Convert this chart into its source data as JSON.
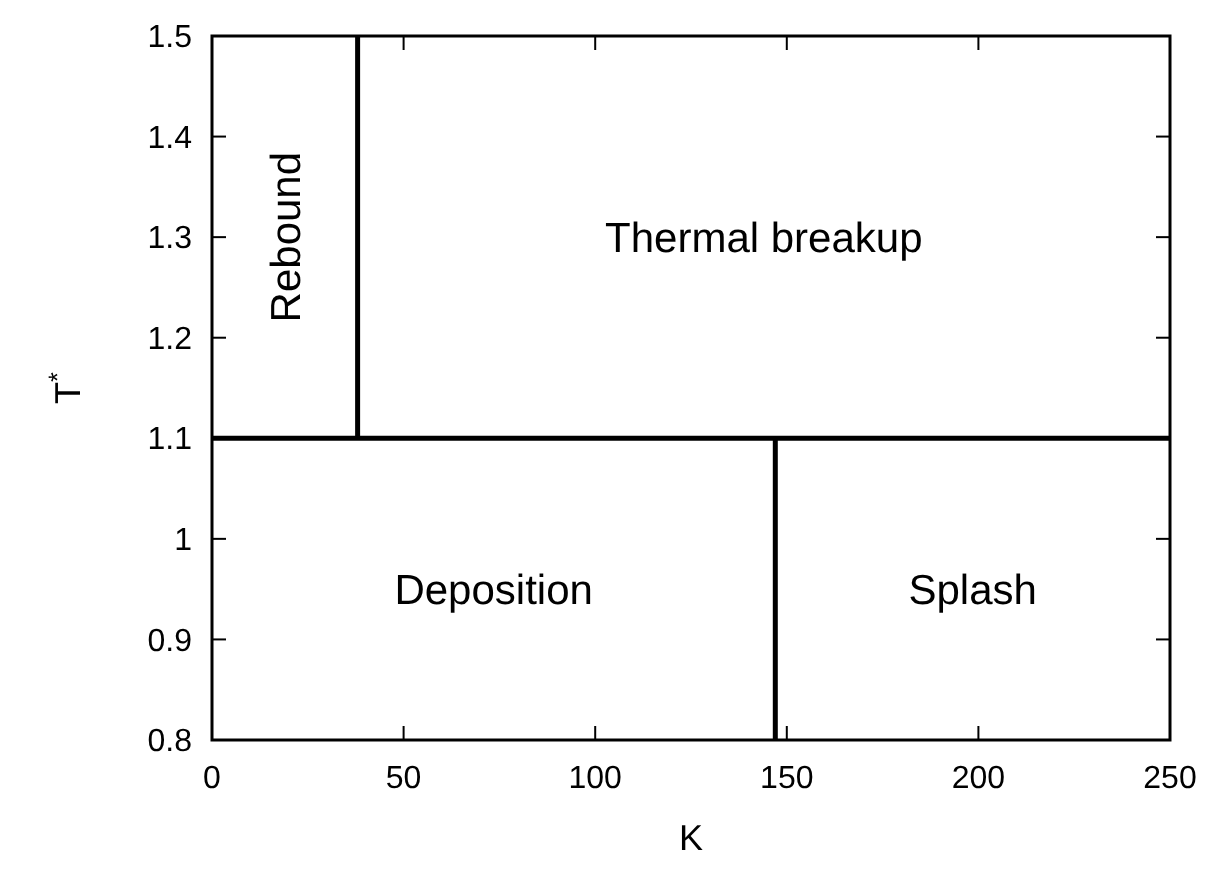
{
  "chart_data": {
    "type": "line",
    "xlabel": "K",
    "ylabel": "T$^{*}$",
    "xlim": [
      0,
      250
    ],
    "xticks": [
      0,
      50,
      100,
      150,
      200,
      250
    ],
    "ylim": [
      0.8,
      1.5
    ],
    "yticks": [
      0.8,
      0.9,
      1,
      1.1,
      1.2,
      1.3,
      1.4,
      1.5
    ],
    "grid": false,
    "marker": "none",
    "line_style": "solid",
    "series": [
      {
        "color": "#000000",
        "x": [
          0,
          250
        ],
        "values": [
          1.1,
          1.1
        ]
      },
      {
        "color": "#000000",
        "x": [
          38,
          38
        ],
        "values": [
          1.1,
          1.5
        ]
      },
      {
        "color": "#000000",
        "x": [
          147,
          147
        ],
        "values": [
          0.8,
          1.1
        ]
      }
    ],
    "annotations": [
      "Rebound",
      "Thermal breakup",
      "Deposition",
      "Splash"
    ]
  }
}
